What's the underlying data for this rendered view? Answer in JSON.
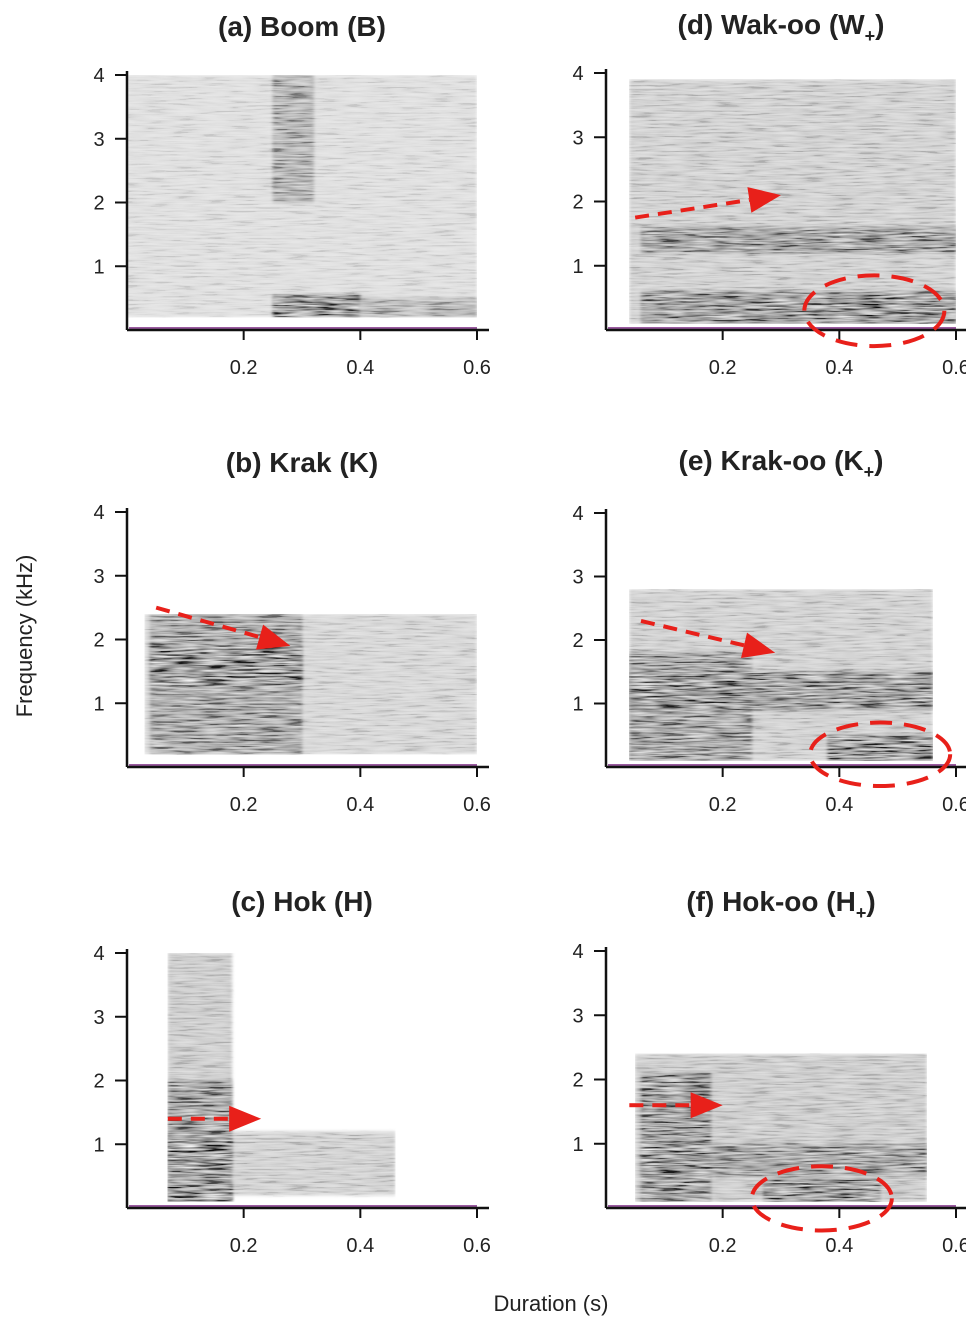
{
  "figure": {
    "ylabel": "Frequency (kHz)",
    "xlabel": "Duration (s)"
  },
  "colors": {
    "spectrogram": "#111111",
    "axis": "#111111",
    "annotation": "#e8201a",
    "baseline": "#9a5ba0"
  },
  "chart_data": [
    {
      "type": "heatmap",
      "title": "(a) Boom (B)",
      "x_ticks": [
        "0.2",
        "0.4",
        "0.6"
      ],
      "y_ticks": [
        "1",
        "2",
        "3",
        "4"
      ],
      "xlim": [
        0,
        0.6
      ],
      "ylim": [
        0,
        4
      ],
      "energy": [
        {
          "t": [
            0.0,
            0.6
          ],
          "f": [
            0.2,
            4.0
          ],
          "level": 0.12
        },
        {
          "t": [
            0.25,
            0.32
          ],
          "f": [
            2.0,
            4.0
          ],
          "level": 0.45
        },
        {
          "t": [
            0.25,
            0.4
          ],
          "f": [
            0.2,
            0.55
          ],
          "level": 1.0
        },
        {
          "t": [
            0.4,
            0.6
          ],
          "f": [
            0.2,
            0.5
          ],
          "level": 0.35
        }
      ],
      "annotations": []
    },
    {
      "type": "heatmap",
      "title": "(b) Krak (K)",
      "x_ticks": [
        "0.2",
        "0.4",
        "0.6"
      ],
      "y_ticks": [
        "1",
        "2",
        "3",
        "4"
      ],
      "xlim": [
        0,
        0.6
      ],
      "ylim": [
        0,
        4
      ],
      "energy": [
        {
          "t": [
            0.03,
            0.6
          ],
          "f": [
            0.2,
            2.4
          ],
          "level": 0.2
        },
        {
          "t": [
            0.04,
            0.3
          ],
          "f": [
            0.2,
            2.4
          ],
          "level": 0.6
        },
        {
          "t": [
            0.04,
            0.3
          ],
          "f": [
            1.3,
            1.9
          ],
          "level": 0.9
        }
      ],
      "annotations": [
        {
          "kind": "arrow",
          "from": [
            0.05,
            2.5
          ],
          "to": [
            0.28,
            1.9
          ]
        }
      ]
    },
    {
      "type": "heatmap",
      "title": "(c) Hok (H)",
      "x_ticks": [
        "0.2",
        "0.4",
        "0.6"
      ],
      "y_ticks": [
        "1",
        "2",
        "3",
        "4"
      ],
      "xlim": [
        0,
        0.6
      ],
      "ylim": [
        0,
        4
      ],
      "energy": [
        {
          "t": [
            0.07,
            0.18
          ],
          "f": [
            0.1,
            4.0
          ],
          "level": 0.3
        },
        {
          "t": [
            0.07,
            0.18
          ],
          "f": [
            0.1,
            2.0
          ],
          "level": 0.7
        },
        {
          "t": [
            0.07,
            0.18
          ],
          "f": [
            0.6,
            1.1
          ],
          "level": 1.0
        },
        {
          "t": [
            0.07,
            0.18
          ],
          "f": [
            0.1,
            0.4
          ],
          "level": 1.0
        },
        {
          "t": [
            0.18,
            0.46
          ],
          "f": [
            0.2,
            1.2
          ],
          "level": 0.25
        }
      ],
      "annotations": [
        {
          "kind": "arrow",
          "from": [
            0.07,
            1.4
          ],
          "to": [
            0.23,
            1.4
          ]
        }
      ]
    },
    {
      "type": "heatmap",
      "title": "(d) Wak-oo (W+)",
      "x_ticks": [
        "0.2",
        "0.4",
        "0.6"
      ],
      "y_ticks": [
        "1",
        "2",
        "3",
        "4"
      ],
      "xlim": [
        0,
        0.6
      ],
      "ylim": [
        0,
        4
      ],
      "energy": [
        {
          "t": [
            0.04,
            0.6
          ],
          "f": [
            0.1,
            3.9
          ],
          "level": 0.25
        },
        {
          "t": [
            0.06,
            0.6
          ],
          "f": [
            1.2,
            1.6
          ],
          "level": 0.7
        },
        {
          "t": [
            0.06,
            0.6
          ],
          "f": [
            0.1,
            0.6
          ],
          "level": 0.8
        },
        {
          "t": [
            0.38,
            0.52
          ],
          "f": [
            0.2,
            0.5
          ],
          "level": 1.0
        }
      ],
      "annotations": [
        {
          "kind": "arrow",
          "from": [
            0.05,
            1.75
          ],
          "to": [
            0.3,
            2.1
          ]
        },
        {
          "kind": "ellipse",
          "center": [
            0.46,
            0.3
          ],
          "radius": [
            0.12,
            0.55
          ]
        }
      ]
    },
    {
      "type": "heatmap",
      "title": "(e) Krak-oo (K+)",
      "x_ticks": [
        "0.2",
        "0.4",
        "0.6"
      ],
      "y_ticks": [
        "1",
        "2",
        "3",
        "4"
      ],
      "xlim": [
        0,
        0.6
      ],
      "ylim": [
        0,
        4
      ],
      "energy": [
        {
          "t": [
            0.04,
            0.56
          ],
          "f": [
            0.1,
            2.8
          ],
          "level": 0.25
        },
        {
          "t": [
            0.04,
            0.25
          ],
          "f": [
            0.1,
            1.8
          ],
          "level": 0.65
        },
        {
          "t": [
            0.04,
            0.56
          ],
          "f": [
            0.9,
            1.5
          ],
          "level": 0.8
        },
        {
          "t": [
            0.38,
            0.56
          ],
          "f": [
            0.1,
            0.5
          ],
          "level": 1.0
        }
      ],
      "annotations": [
        {
          "kind": "arrow",
          "from": [
            0.06,
            2.3
          ],
          "to": [
            0.29,
            1.8
          ]
        },
        {
          "kind": "ellipse",
          "center": [
            0.47,
            0.2
          ],
          "radius": [
            0.12,
            0.5
          ]
        }
      ]
    },
    {
      "type": "heatmap",
      "title": "(f) Hok-oo (H+)",
      "x_ticks": [
        "0.2",
        "0.4",
        "0.6"
      ],
      "y_ticks": [
        "1",
        "2",
        "3",
        "4"
      ],
      "xlim": [
        0,
        0.6
      ],
      "ylim": [
        0,
        4
      ],
      "energy": [
        {
          "t": [
            0.05,
            0.55
          ],
          "f": [
            0.1,
            2.4
          ],
          "level": 0.3
        },
        {
          "t": [
            0.06,
            0.18
          ],
          "f": [
            0.1,
            2.1
          ],
          "level": 0.85
        },
        {
          "t": [
            0.06,
            0.55
          ],
          "f": [
            0.5,
            1.0
          ],
          "level": 0.6
        },
        {
          "t": [
            0.27,
            0.47
          ],
          "f": [
            0.1,
            0.45
          ],
          "level": 1.0
        }
      ],
      "annotations": [
        {
          "kind": "arrow",
          "from": [
            0.04,
            1.6
          ],
          "to": [
            0.2,
            1.6
          ]
        },
        {
          "kind": "ellipse",
          "center": [
            0.37,
            0.15
          ],
          "radius": [
            0.12,
            0.5
          ]
        }
      ]
    }
  ]
}
